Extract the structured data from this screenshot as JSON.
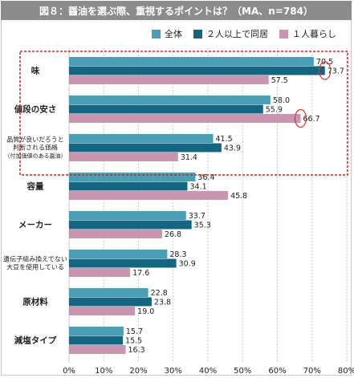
{
  "title": "図８：醤油を選ぶ際、重視するポイントは？（MA、n=784）",
  "colors": {
    "series": [
      "#4a9eb5",
      "#146580",
      "#c996b0"
    ],
    "highlight_box": "#e02020",
    "highlight_circle": "#e03030",
    "title_bg": "#8c8c8c"
  },
  "chart_data": {
    "type": "bar",
    "orientation": "horizontal",
    "title": "図８：醤油を選ぶ際、重視するポイントは？（MA、n=784）",
    "categories": [
      [
        "味"
      ],
      [
        "値段の安さ"
      ],
      [
        "品質が良いだろうと",
        "判断される価格",
        "（付加価値のある醤油）"
      ],
      [
        "容量"
      ],
      [
        "メーカー"
      ],
      [
        "遺伝子組み換えでない",
        "大豆を使用している"
      ],
      [
        "原材料"
      ],
      [
        "減塩タイプ"
      ]
    ],
    "series": [
      {
        "name": "全体",
        "values": [
          70.5,
          58.0,
          41.5,
          36.4,
          33.7,
          28.3,
          22.8,
          15.7
        ]
      },
      {
        "name": "２人以上で同居",
        "values": [
          73.7,
          55.9,
          43.9,
          34.1,
          35.3,
          30.9,
          23.8,
          15.5
        ]
      },
      {
        "name": "１人暮らし",
        "values": [
          57.5,
          66.7,
          31.4,
          45.8,
          26.8,
          17.6,
          19.0,
          16.3
        ]
      }
    ],
    "value_labels": [
      [
        "70.5",
        "58.0",
        "41.5",
        "36.4",
        "33.7",
        "28.3",
        "22.8",
        "15.7"
      ],
      [
        "73.7",
        "55.9",
        "43.9",
        "34.1",
        "35.3",
        "30.9",
        "23.8",
        "15.5"
      ],
      [
        "57.5",
        "66.7",
        "31.4",
        "45.8",
        "26.8",
        "17.6",
        "19.0",
        "16.3"
      ]
    ],
    "xlim": [
      0,
      80
    ],
    "xticks": [
      "0%",
      "10%",
      "20%",
      "30%",
      "40%",
      "50%",
      "60%",
      "70%",
      "80%"
    ],
    "grid": true,
    "legend_position": "top-right",
    "highlighted_categories": [
      "味",
      "値段の安さ"
    ],
    "circled_values": [
      {
        "series": 1,
        "category": 0
      },
      {
        "series": 2,
        "category": 1
      }
    ]
  }
}
